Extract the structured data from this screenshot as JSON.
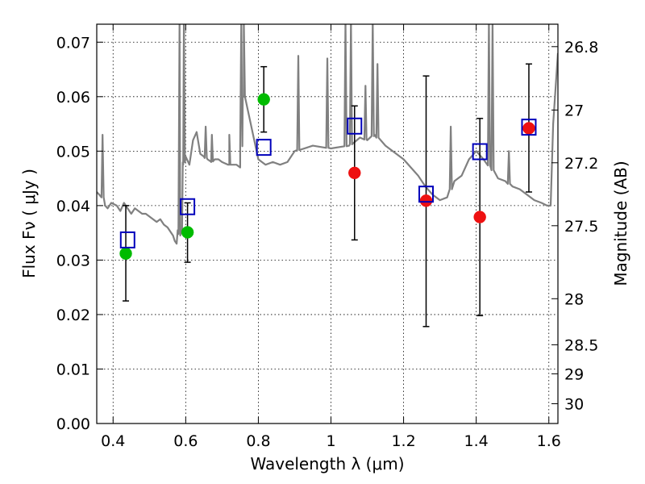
{
  "chart_data": {
    "type": "scatter",
    "xlabel": "Wavelength  λ (μm)",
    "ylabel": "Flux  Fν  ( μJy )",
    "y2label": "Magnitude (AB)",
    "xlim": [
      0.355,
      1.625
    ],
    "ylim": [
      0.0,
      0.0733
    ],
    "grid": true,
    "x_ticks": [
      {
        "value": 0.4,
        "label": "0.4"
      },
      {
        "value": 0.6,
        "label": "0.6"
      },
      {
        "value": 0.8,
        "label": "0.8"
      },
      {
        "value": 1.0,
        "label": "1"
      },
      {
        "value": 1.2,
        "label": "1.2"
      },
      {
        "value": 1.4,
        "label": "1.4"
      },
      {
        "value": 1.6,
        "label": "1.6"
      }
    ],
    "y_ticks": [
      {
        "value": 0.0,
        "label": "0.00"
      },
      {
        "value": 0.01,
        "label": "0.01"
      },
      {
        "value": 0.02,
        "label": "0.02"
      },
      {
        "value": 0.03,
        "label": "0.03"
      },
      {
        "value": 0.04,
        "label": "0.04"
      },
      {
        "value": 0.05,
        "label": "0.05"
      },
      {
        "value": 0.06,
        "label": "0.06"
      },
      {
        "value": 0.07,
        "label": "0.07"
      }
    ],
    "mag_ticks": [
      {
        "value": 26.8,
        "label": "26.8"
      },
      {
        "value": 27.0,
        "label": "27"
      },
      {
        "value": 27.2,
        "label": "27.2"
      },
      {
        "value": 27.5,
        "label": "27.5"
      },
      {
        "value": 28.0,
        "label": "28"
      },
      {
        "value": 28.5,
        "label": "28.5"
      },
      {
        "value": 29.0,
        "label": "29"
      },
      {
        "value": 30.0,
        "label": "30"
      }
    ],
    "colors": {
      "model": "#808080",
      "model_fluxes": "#0000bb",
      "observed_green": "#00bb00",
      "observed_red": "#ee1111",
      "error_bars": "#000000"
    },
    "model_spectrum": {
      "x": [
        0.355,
        0.362,
        0.368,
        0.371,
        0.374,
        0.378,
        0.385,
        0.395,
        0.41,
        0.42,
        0.43,
        0.44,
        0.45,
        0.46,
        0.47,
        0.48,
        0.49,
        0.5,
        0.51,
        0.52,
        0.53,
        0.54,
        0.55,
        0.56,
        0.565,
        0.57,
        0.575,
        0.578,
        0.585,
        0.59,
        0.593,
        0.6,
        0.61,
        0.62,
        0.63,
        0.64,
        0.65,
        0.66,
        0.67,
        0.68,
        0.69,
        0.7,
        0.72,
        0.74,
        0.75,
        0.76,
        0.8,
        0.82,
        0.84,
        0.86,
        0.88,
        0.9,
        0.95,
        1.0,
        1.05,
        1.08,
        1.1,
        1.12,
        1.15,
        1.18,
        1.2,
        1.22,
        1.24,
        1.26,
        1.28,
        1.3,
        1.32,
        1.34,
        1.36,
        1.38,
        1.4,
        1.42,
        1.44,
        1.46,
        1.48,
        1.5,
        1.52,
        1.54,
        1.56,
        1.58,
        1.595,
        1.605,
        1.612,
        1.625
      ],
      "y": [
        0.0425,
        0.042,
        0.0415,
        0.053,
        0.0415,
        0.04,
        0.0395,
        0.0405,
        0.04,
        0.039,
        0.0405,
        0.0395,
        0.0385,
        0.0395,
        0.039,
        0.0385,
        0.0385,
        0.038,
        0.0375,
        0.037,
        0.0375,
        0.0365,
        0.036,
        0.035,
        0.0345,
        0.0335,
        0.033,
        0.0355,
        0.0345,
        0.0355,
        0.0475,
        0.049,
        0.0475,
        0.052,
        0.0535,
        0.0495,
        0.049,
        0.0485,
        0.048,
        0.0485,
        0.0485,
        0.048,
        0.0475,
        0.0475,
        0.047,
        0.06,
        0.0485,
        0.0475,
        0.048,
        0.0475,
        0.048,
        0.05,
        0.051,
        0.0505,
        0.051,
        0.0525,
        0.052,
        0.053,
        0.051,
        0.0495,
        0.0485,
        0.047,
        0.0455,
        0.0435,
        0.042,
        0.041,
        0.0415,
        0.0445,
        0.0455,
        0.0485,
        0.05,
        0.0485,
        0.047,
        0.045,
        0.0445,
        0.0435,
        0.043,
        0.042,
        0.041,
        0.0405,
        0.04,
        0.04,
        0.055,
        0.068
      ]
    },
    "emission_lines": [
      {
        "x": 0.583,
        "peak": 0.074
      },
      {
        "x": 0.595,
        "peak": 0.074
      },
      {
        "x": 0.655,
        "peak": 0.0545
      },
      {
        "x": 0.672,
        "peak": 0.053
      },
      {
        "x": 0.72,
        "peak": 0.053
      },
      {
        "x": 0.753,
        "peak": 0.074
      },
      {
        "x": 0.76,
        "peak": 0.074
      },
      {
        "x": 0.91,
        "peak": 0.0675
      },
      {
        "x": 0.99,
        "peak": 0.067
      },
      {
        "x": 1.04,
        "peak": 0.074
      },
      {
        "x": 1.055,
        "peak": 0.074
      },
      {
        "x": 1.095,
        "peak": 0.062
      },
      {
        "x": 1.115,
        "peak": 0.074
      },
      {
        "x": 1.128,
        "peak": 0.066
      },
      {
        "x": 1.33,
        "peak": 0.0545
      },
      {
        "x": 1.435,
        "peak": 0.074
      },
      {
        "x": 1.445,
        "peak": 0.074
      },
      {
        "x": 1.49,
        "peak": 0.05
      }
    ],
    "model_fluxes": {
      "x": [
        0.44,
        0.605,
        0.815,
        1.065,
        1.262,
        1.41,
        1.545
      ],
      "y": [
        0.0337,
        0.0398,
        0.0507,
        0.0546,
        0.0421,
        0.0499,
        0.0544
      ]
    },
    "observed": [
      {
        "x": 0.435,
        "y": 0.0312,
        "err_low": 0.0225,
        "err_high": 0.04,
        "color": "green"
      },
      {
        "x": 0.605,
        "y": 0.0351,
        "err_low": 0.0296,
        "err_high": 0.0405,
        "color": "green"
      },
      {
        "x": 0.815,
        "y": 0.0595,
        "err_low": 0.0535,
        "err_high": 0.0655,
        "color": "green"
      },
      {
        "x": 1.065,
        "y": 0.046,
        "err_low": 0.0337,
        "err_high": 0.0583,
        "color": "red"
      },
      {
        "x": 1.262,
        "y": 0.0409,
        "err_low": 0.0178,
        "err_high": 0.0638,
        "color": "red"
      },
      {
        "x": 1.41,
        "y": 0.0379,
        "err_low": 0.0198,
        "err_high": 0.056,
        "color": "red"
      },
      {
        "x": 1.545,
        "y": 0.0542,
        "err_low": 0.0425,
        "err_high": 0.066,
        "color": "red"
      }
    ]
  }
}
